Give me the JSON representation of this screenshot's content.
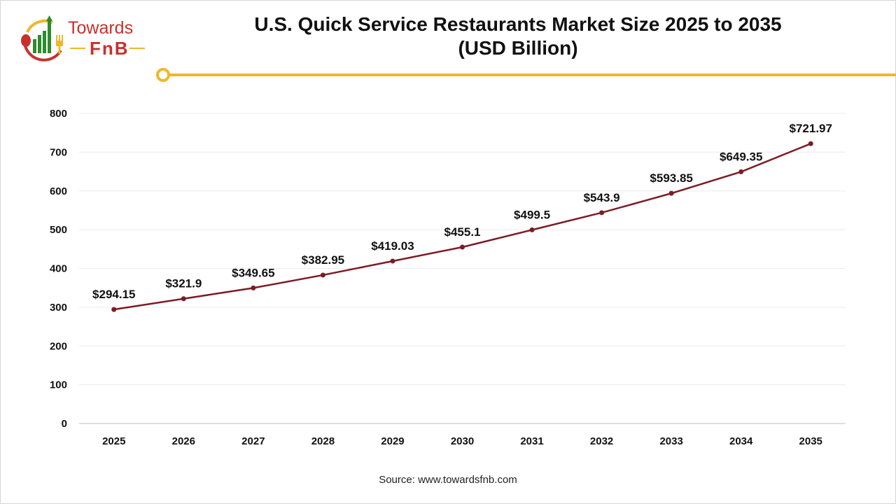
{
  "logo": {
    "line1": "Towards",
    "line2": "FnB"
  },
  "chart_data": {
    "type": "line",
    "title": "U.S. Quick Service Restaurants Market Size 2025 to 2035",
    "subtitle": "(USD Billion)",
    "categories": [
      "2025",
      "2026",
      "2027",
      "2028",
      "2029",
      "2030",
      "2031",
      "2032",
      "2033",
      "2034",
      "2035"
    ],
    "series": [
      {
        "values": [
          294.15,
          321.9,
          349.65,
          382.95,
          419.03,
          455.1,
          499.5,
          543.9,
          593.85,
          649.35,
          721.97
        ]
      }
    ],
    "data_labels": [
      "$294.15",
      "$321.9",
      "$349.65",
      "$382.95",
      "$419.03",
      "$455.1",
      "$499.5",
      "$543.9",
      "$593.85",
      "$649.35",
      "$721.97"
    ],
    "yticks": [
      "0",
      "100",
      "200",
      "300",
      "400",
      "500",
      "600",
      "700",
      "800"
    ],
    "ylim": [
      0,
      800
    ],
    "grid": true,
    "line_color": "#7b1c26",
    "xlabel": "",
    "ylabel": ""
  },
  "source": "Source: www.towardsfnb.com"
}
